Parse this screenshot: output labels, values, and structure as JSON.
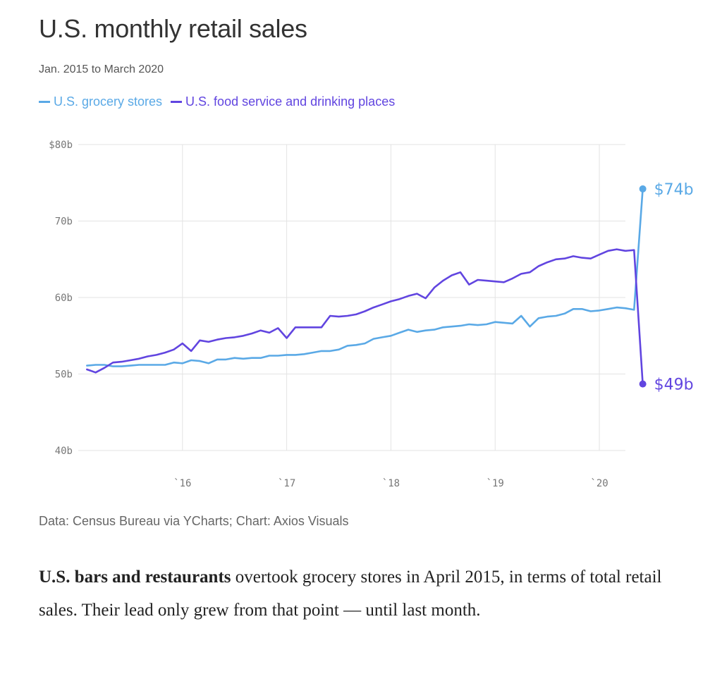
{
  "header": {
    "title": "U.S. monthly retail sales",
    "subtitle": "Jan. 2015 to March 2020"
  },
  "legend": [
    {
      "label": "U.S. grocery stores",
      "color": "#5aa9e6"
    },
    {
      "label": "U.S. food service and drinking places",
      "color": "#6145e0"
    }
  ],
  "footer": {
    "source": "Data: Census Bureau via YCharts; Chart: Axios Visuals"
  },
  "article": {
    "lead_bold": "U.S. bars and restaurants",
    "lead_rest": " overtook grocery stores in April 2015, in terms of total retail sales. Their lead only grew from that point — until last month."
  },
  "chart_data": {
    "type": "line",
    "ylim": [
      40,
      80
    ],
    "xlim": [
      2015.0,
      2020.25
    ],
    "y_ticks": [
      {
        "value": 80,
        "label": "$80b"
      },
      {
        "value": 70,
        "label": "70b"
      },
      {
        "value": 60,
        "label": "60b"
      },
      {
        "value": 50,
        "label": "50b"
      },
      {
        "value": 40,
        "label": "40b"
      }
    ],
    "x_ticks": [
      {
        "value": 2016,
        "label": "`16"
      },
      {
        "value": 2017,
        "label": "`17"
      },
      {
        "value": 2018,
        "label": "`18"
      },
      {
        "value": 2019,
        "label": "`19"
      },
      {
        "value": 2020,
        "label": "`20"
      }
    ],
    "grid": true,
    "series": [
      {
        "name": "U.S. grocery stores",
        "color": "#5aa9e6",
        "end_label": "$74b",
        "values": [
          51.1,
          51.2,
          51.2,
          51.0,
          51.0,
          51.1,
          51.2,
          51.2,
          51.2,
          51.2,
          51.5,
          51.4,
          51.8,
          51.7,
          51.4,
          51.9,
          51.9,
          52.1,
          52.0,
          52.1,
          52.1,
          52.4,
          52.4,
          52.5,
          52.5,
          52.6,
          52.8,
          53.0,
          53.0,
          53.2,
          53.7,
          53.8,
          54.0,
          54.6,
          54.8,
          55.0,
          55.4,
          55.8,
          55.5,
          55.7,
          55.8,
          56.1,
          56.2,
          56.3,
          56.5,
          56.4,
          56.5,
          56.8,
          56.7,
          56.6,
          57.6,
          56.2,
          57.3,
          57.5,
          57.6,
          57.9,
          58.5,
          58.5,
          58.2,
          58.3,
          58.5,
          58.7,
          58.6,
          58.4,
          74.2
        ]
      },
      {
        "name": "U.S. food service and drinking places",
        "color": "#6145e0",
        "end_label": "$49b",
        "values": [
          50.6,
          50.2,
          50.8,
          51.5,
          51.6,
          51.8,
          52.0,
          52.3,
          52.5,
          52.8,
          53.2,
          54.0,
          53.0,
          54.4,
          54.2,
          54.5,
          54.7,
          54.8,
          55.0,
          55.3,
          55.7,
          55.4,
          56.0,
          54.7,
          56.1,
          56.1,
          56.1,
          56.1,
          57.6,
          57.5,
          57.6,
          57.8,
          58.2,
          58.7,
          59.1,
          59.5,
          59.8,
          60.2,
          60.5,
          59.9,
          61.3,
          62.2,
          62.9,
          63.3,
          61.7,
          62.3,
          62.2,
          62.1,
          62.0,
          62.5,
          63.1,
          63.3,
          64.1,
          64.6,
          65.0,
          65.1,
          65.4,
          65.2,
          65.1,
          65.6,
          66.1,
          66.3,
          66.1,
          66.2,
          48.7
        ]
      }
    ]
  }
}
